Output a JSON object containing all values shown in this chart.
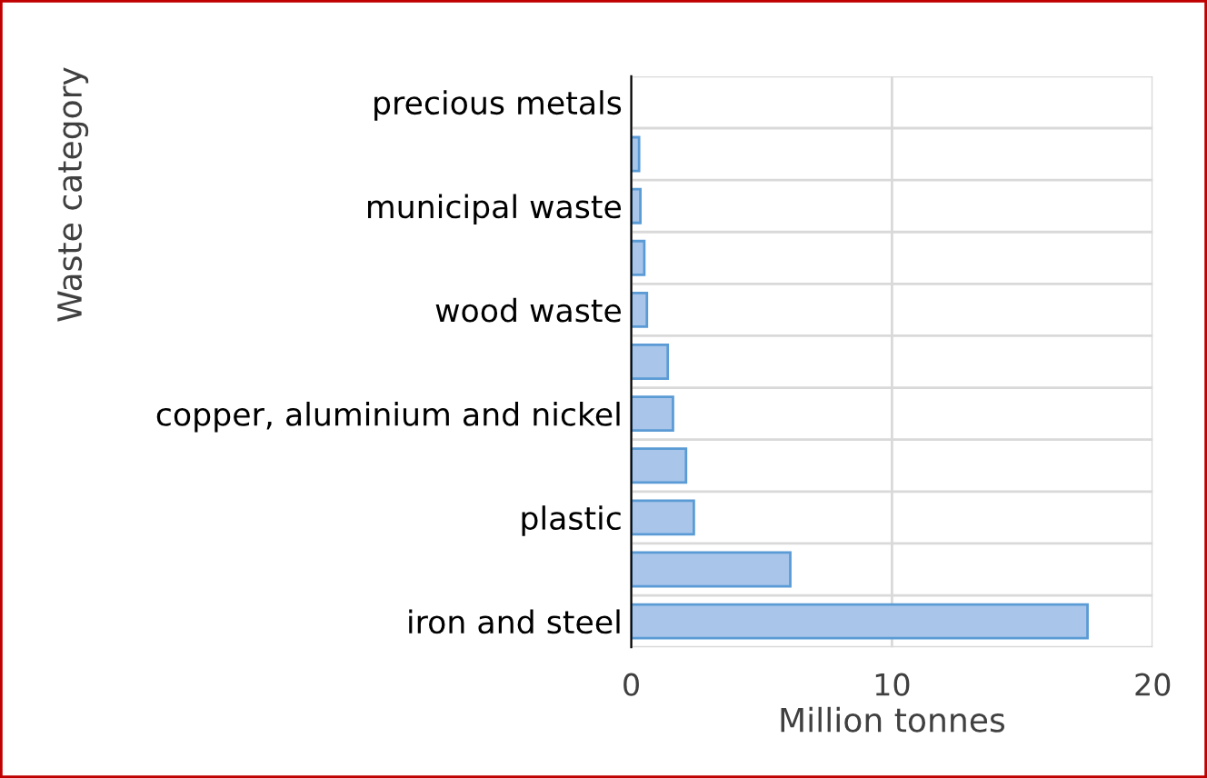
{
  "chart_data": {
    "type": "bar",
    "orientation": "horizontal",
    "xlabel": "Million tonnes",
    "ylabel": "Waste category",
    "categories": [
      "precious metals",
      null,
      "municipal waste",
      null,
      "wood waste",
      null,
      "copper, aluminium and nickel",
      null,
      "plastic",
      null,
      "iron and steel"
    ],
    "values": [
      0,
      0.3,
      0.35,
      0.5,
      0.6,
      1.4,
      1.6,
      2.1,
      2.4,
      6.1,
      17.5
    ],
    "color": "#a9c6ea",
    "xlim": [
      0,
      20
    ],
    "xticks": [
      0,
      10,
      20
    ],
    "grid": true,
    "legend": false
  }
}
